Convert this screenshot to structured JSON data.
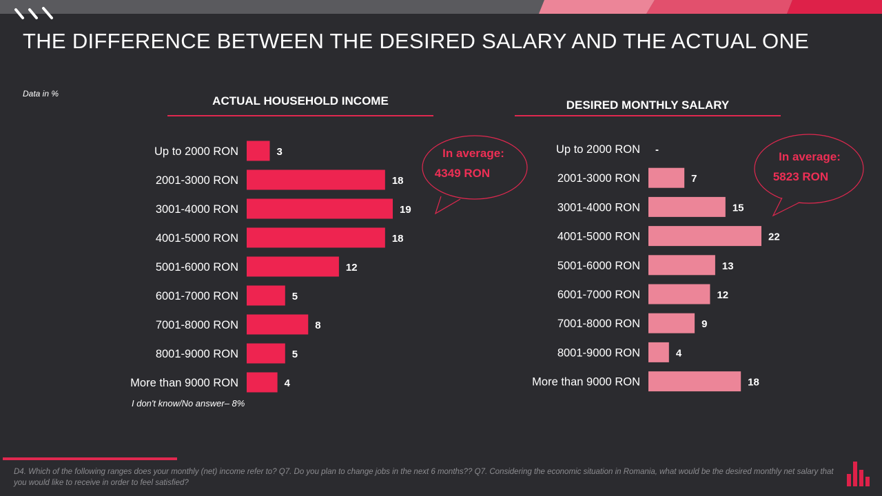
{
  "title": "THE DIFFERENCE BETWEEN THE DESIRED SALARY AND THE ACTUAL ONE",
  "unit_note": "Data in %",
  "no_answer_note": "I don't know/No answer– 8%",
  "footnote": "D4. Which of the following ranges does your monthly (net) income refer to? Q7. Do you plan to change jobs in the next 6 months?? Q7. Considering the economic situation in Romania, what would be the desired monthly net salary that you would like to receive in order to feel satisfied?",
  "colors": {
    "background": "#2b2b2f",
    "actual_bar": "#ee2450",
    "desired_bar": "#ec8598",
    "accent": "#e0284f",
    "top_stripe_1": "#ec8598",
    "top_stripe_2": "#e2506d",
    "top_stripe_3": "#de2149"
  },
  "icons": [
    "slash-stripes-icon",
    "speech-bubble-icon",
    "brand-logo-icon"
  ],
  "chart_data": [
    {
      "type": "bar",
      "orientation": "horizontal",
      "title": "ACTUAL HOUSEHOLD  INCOME",
      "categories": [
        "Up to  2000 RON",
        "2001-3000 RON",
        "3001-4000 RON",
        "4001-5000 RON",
        "5001-6000 RON",
        "6001-7000 RON",
        "7001-8000 RON",
        "8001-9000 RON",
        "More than  9000 RON"
      ],
      "values": [
        3,
        18,
        19,
        18,
        12,
        5,
        8,
        5,
        4
      ],
      "value_labels": [
        "3",
        "18",
        "19",
        "18",
        "12",
        "5",
        "8",
        "5",
        "4"
      ],
      "unit": "%",
      "xlim": [
        0,
        19
      ],
      "grid": false,
      "annotation": {
        "line1": "In average:",
        "line2": "4349 RON"
      }
    },
    {
      "type": "bar",
      "orientation": "horizontal",
      "title": "DESIRED MONTHLY SALARY",
      "categories": [
        "Up to  2000 RON",
        "2001-3000 RON",
        "3001-4000 RON",
        "4001-5000 RON",
        "5001-6000 RON",
        "6001-7000 RON",
        "7001-8000 RON",
        "8001-9000 RON",
        "More than  9000 RON"
      ],
      "values": [
        null,
        7,
        15,
        22,
        13,
        12,
        9,
        4,
        18
      ],
      "value_labels": [
        "-",
        "7",
        "15",
        "22",
        "13",
        "12",
        "9",
        "4",
        "18"
      ],
      "unit": "%",
      "xlim": [
        0,
        22
      ],
      "grid": false,
      "annotation": {
        "line1": "In average:",
        "line2": "5823  RON"
      }
    }
  ]
}
